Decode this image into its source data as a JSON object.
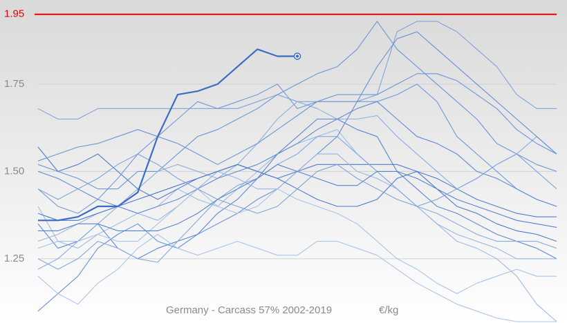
{
  "chart_data": {
    "type": "line",
    "title": "Germany - Carcass 57% 2002-2019",
    "unit": "€/kg",
    "categories": [
      null,
      null,
      null,
      null,
      null,
      null,
      null,
      null,
      null,
      null,
      null,
      null,
      null,
      null,
      null,
      null,
      null,
      null,
      null,
      null,
      null,
      null,
      null,
      null,
      null,
      null,
      null
    ],
    "ylim": [
      1.066,
      1.991
    ],
    "yticks": [
      1.25,
      {
        "value": 1.5,
        "label": "1.50"
      },
      1.75
    ],
    "grid": true,
    "reference_line": {
      "value": 1.95,
      "color": "#e60000"
    },
    "series": [
      {
        "color": "#7fa3dc",
        "values": [
          1.68,
          1.65,
          1.65,
          1.68,
          1.68,
          1.68,
          1.68,
          1.68,
          1.68,
          1.68,
          1.68,
          1.7,
          1.72,
          1.7,
          1.7,
          1.7,
          1.7,
          1.72,
          1.9,
          1.93,
          1.93,
          1.9,
          1.85,
          1.8,
          1.72,
          1.68,
          1.68
        ]
      },
      {
        "color": "#6b95d6",
        "values": [
          1.52,
          1.5,
          1.48,
          1.45,
          1.45,
          1.5,
          1.5,
          1.55,
          1.6,
          1.62,
          1.65,
          1.68,
          1.72,
          1.75,
          1.78,
          1.8,
          1.85,
          1.93,
          1.85,
          1.8,
          1.75,
          1.7,
          1.65,
          1.58,
          1.55,
          1.52,
          1.5
        ]
      },
      {
        "color": "#9dbbe6",
        "values": [
          1.4,
          1.3,
          1.28,
          1.32,
          1.35,
          1.38,
          1.4,
          1.45,
          1.42,
          1.4,
          1.45,
          1.5,
          1.55,
          1.58,
          1.6,
          1.62,
          1.55,
          1.5,
          1.45,
          1.4,
          1.35,
          1.3,
          1.28,
          1.25,
          1.2,
          1.12,
          1.07
        ]
      },
      {
        "color": "#5a86d0",
        "values": [
          1.35,
          1.28,
          1.3,
          1.35,
          1.28,
          1.25,
          1.28,
          1.3,
          1.32,
          1.38,
          1.42,
          1.48,
          1.55,
          1.6,
          1.65,
          1.65,
          1.62,
          1.6,
          1.5,
          1.45,
          1.4,
          1.38,
          1.35,
          1.32,
          1.3,
          1.28,
          1.25
        ]
      },
      {
        "color": "#8aaee2",
        "values": [
          1.22,
          1.25,
          1.3,
          1.35,
          1.4,
          1.45,
          1.5,
          1.52,
          1.5,
          1.48,
          1.52,
          1.58,
          1.65,
          1.7,
          1.68,
          1.65,
          1.65,
          1.66,
          1.6,
          1.55,
          1.5,
          1.45,
          1.48,
          1.52,
          1.55,
          1.6,
          1.55
        ]
      },
      {
        "color": "#4f7ccc",
        "values": [
          1.57,
          1.5,
          1.52,
          1.55,
          1.5,
          1.45,
          1.42,
          1.45,
          1.48,
          1.5,
          1.52,
          1.5,
          1.48,
          1.5,
          1.52,
          1.52,
          1.52,
          1.52,
          1.52,
          1.5,
          1.48,
          1.45,
          1.42,
          1.4,
          1.38,
          1.37,
          1.37
        ]
      },
      {
        "color": "#7399d8",
        "values": [
          1.45,
          1.4,
          1.38,
          1.42,
          1.48,
          1.55,
          1.6,
          1.65,
          1.7,
          1.68,
          1.7,
          1.72,
          1.75,
          1.68,
          1.7,
          1.7,
          1.7,
          1.7,
          1.72,
          1.75,
          1.7,
          1.6,
          1.55,
          1.5,
          1.45,
          1.42,
          1.4
        ]
      },
      {
        "color": "#6690d4",
        "values": [
          1.1,
          1.15,
          1.2,
          1.28,
          1.32,
          1.35,
          1.3,
          1.28,
          1.32,
          1.35,
          1.38,
          1.42,
          1.45,
          1.5,
          1.55,
          1.6,
          1.7,
          1.8,
          1.88,
          1.9,
          1.85,
          1.8,
          1.75,
          1.7,
          1.65,
          1.6,
          1.55
        ]
      },
      {
        "color": "#97b6e4",
        "values": [
          1.3,
          1.32,
          1.35,
          1.38,
          1.4,
          1.38,
          1.36,
          1.4,
          1.45,
          1.5,
          1.48,
          1.45,
          1.45,
          1.5,
          1.55,
          1.55,
          1.5,
          1.48,
          1.45,
          1.4,
          1.35,
          1.32,
          1.3,
          1.28,
          1.25,
          1.25,
          1.25
        ]
      },
      {
        "color": "#a8c3ea",
        "values": [
          1.28,
          1.3,
          1.3,
          1.32,
          1.3,
          1.3,
          1.35,
          1.4,
          1.45,
          1.4,
          1.38,
          1.4,
          1.45,
          1.42,
          1.4,
          1.38,
          1.35,
          1.3,
          1.25,
          1.22,
          1.18,
          1.15,
          1.18,
          1.2,
          1.22,
          1.2,
          1.2
        ]
      },
      {
        "color": "#5f8ad2",
        "values": [
          1.5,
          1.48,
          1.45,
          1.42,
          1.4,
          1.38,
          1.4,
          1.42,
          1.45,
          1.48,
          1.5,
          1.52,
          1.55,
          1.58,
          1.62,
          1.65,
          1.68,
          1.7,
          1.65,
          1.6,
          1.58,
          1.55,
          1.5,
          1.48,
          1.45,
          1.42,
          1.4
        ]
      },
      {
        "color": "#4a78ca",
        "values": [
          1.38,
          1.36,
          1.36,
          1.38,
          1.4,
          1.42,
          1.44,
          1.46,
          1.48,
          1.5,
          1.52,
          1.5,
          1.48,
          1.45,
          1.42,
          1.4,
          1.4,
          1.42,
          1.48,
          1.5,
          1.45,
          1.4,
          1.38,
          1.35,
          1.33,
          1.32,
          1.3
        ]
      },
      {
        "color": "#84a8de",
        "values": [
          1.25,
          1.22,
          1.25,
          1.3,
          1.28,
          1.25,
          1.24,
          1.3,
          1.36,
          1.42,
          1.46,
          1.48,
          1.52,
          1.55,
          1.6,
          1.6,
          1.55,
          1.5,
          1.45,
          1.4,
          1.38,
          1.35,
          1.32,
          1.3,
          1.3,
          1.3,
          1.28
        ]
      },
      {
        "color": "#5582ce",
        "values": [
          1.33,
          1.33,
          1.35,
          1.35,
          1.33,
          1.33,
          1.33,
          1.35,
          1.38,
          1.42,
          1.45,
          1.48,
          1.52,
          1.5,
          1.48,
          1.46,
          1.46,
          1.5,
          1.5,
          1.48,
          1.45,
          1.42,
          1.4,
          1.38,
          1.36,
          1.35,
          1.34
        ]
      },
      {
        "color": "#aac4ea",
        "values": [
          1.2,
          1.15,
          1.12,
          1.18,
          1.22,
          1.28,
          1.32,
          1.28,
          1.26,
          1.28,
          1.3,
          1.28,
          1.26,
          1.26,
          1.3,
          1.3,
          1.28,
          1.26,
          1.22,
          1.18,
          1.15,
          1.12,
          1.1,
          1.08,
          1.07,
          1.07,
          1.07
        ]
      },
      {
        "color": "#6c94d6",
        "values": [
          1.53,
          1.55,
          1.57,
          1.58,
          1.6,
          1.62,
          1.6,
          1.58,
          1.55,
          1.52,
          1.55,
          1.58,
          1.62,
          1.66,
          1.7,
          1.72,
          1.72,
          1.72,
          1.75,
          1.78,
          1.78,
          1.76,
          1.72,
          1.68,
          1.62,
          1.58,
          1.55
        ]
      },
      {
        "color": "#7da2dc",
        "values": [
          1.45,
          1.42,
          1.45,
          1.48,
          1.52,
          1.55,
          1.52,
          1.48,
          1.45,
          1.42,
          1.4,
          1.38,
          1.4,
          1.45,
          1.5,
          1.52,
          1.48,
          1.45,
          1.42,
          1.4,
          1.42,
          1.45,
          1.48,
          1.52,
          1.55,
          1.5,
          1.45
        ]
      },
      {
        "color": "#3b6cc2",
        "width": 2.2,
        "end_marker": true,
        "values": [
          1.36,
          1.36,
          1.37,
          1.4,
          1.4,
          1.44,
          1.6,
          1.72,
          1.73,
          1.75,
          1.8,
          1.85,
          1.83,
          1.83,
          null,
          null,
          null,
          null,
          null,
          null,
          null,
          null,
          null,
          null,
          null,
          null,
          null
        ]
      }
    ]
  }
}
